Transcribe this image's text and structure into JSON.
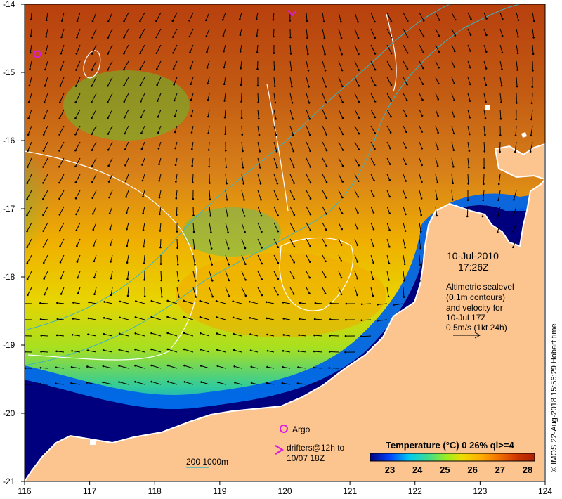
{
  "map": {
    "lon_range": [
      116,
      124
    ],
    "lat_range": [
      -21,
      -14
    ],
    "x_ticks": [
      "116",
      "117",
      "118",
      "119",
      "120",
      "121",
      "122",
      "123",
      "124"
    ],
    "y_ticks": [
      "-14",
      "-15",
      "-16",
      "-17",
      "-18",
      "-19",
      "-20",
      "-21"
    ]
  },
  "annotation": {
    "date": "10-Jul-2010",
    "time": "17:26Z",
    "lines": [
      "Altimetric sealevel",
      "(0.1m contours)",
      "and velocity for",
      "10-Jul 17Z",
      "0.5m/s (1kt 24h)"
    ]
  },
  "legend": {
    "argo_label": "Argo",
    "drifters_line1": "drifters@12h to",
    "drifters_line2": "10/07 18Z",
    "bathy_label": "200  1000m"
  },
  "colorbar": {
    "title": "Temperature (°C) 0 26% ql>=4",
    "ticks": [
      "23",
      "24",
      "25",
      "26",
      "27",
      "28"
    ],
    "colors": [
      "#00007f",
      "#0044ff",
      "#00ccee",
      "#44dd88",
      "#99ee22",
      "#eedd00",
      "#ffaa00",
      "#ee6600",
      "#cc3300",
      "#aa2200"
    ]
  },
  "credit": "© IMOS 22-Aug-2018 15:56:29 Hobart time",
  "colors": {
    "land": "#fcc48e",
    "deep": "#00007f",
    "warm": "#c04a12",
    "contour": "#ffffff",
    "bathy": "#3cb4c4",
    "argo": "#e01ae0"
  }
}
